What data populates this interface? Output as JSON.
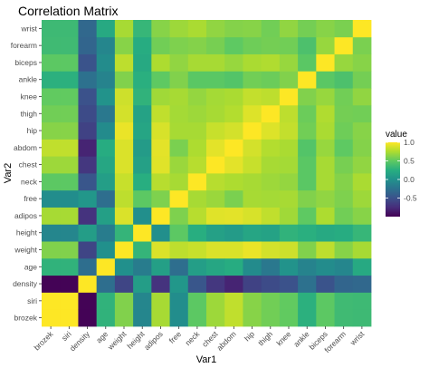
{
  "chart_data": {
    "type": "heatmap",
    "title": "Correlation Matrix",
    "xlabel": "Var1",
    "ylabel": "Var2",
    "variables": [
      "brozek",
      "siri",
      "density",
      "age",
      "weight",
      "height",
      "adipos",
      "free",
      "neck",
      "chest",
      "abdom",
      "hip",
      "thigh",
      "knee",
      "ankle",
      "biceps",
      "forearm",
      "wrist"
    ],
    "values": [
      [
        1.0,
        1.0,
        -0.99,
        0.29,
        0.61,
        -0.09,
        0.73,
        -0.03,
        0.49,
        0.7,
        0.81,
        0.63,
        0.56,
        0.51,
        0.27,
        0.49,
        0.36,
        0.35
      ],
      [
        1.0,
        1.0,
        -0.99,
        0.29,
        0.61,
        -0.09,
        0.73,
        -0.03,
        0.49,
        0.7,
        0.81,
        0.63,
        0.56,
        0.51,
        0.27,
        0.49,
        0.36,
        0.35
      ],
      [
        -0.99,
        -0.99,
        1.0,
        -0.28,
        -0.59,
        0.1,
        -0.71,
        0.05,
        -0.47,
        -0.68,
        -0.8,
        -0.61,
        -0.55,
        -0.5,
        -0.26,
        -0.49,
        -0.35,
        -0.33
      ],
      [
        0.29,
        0.29,
        -0.28,
        1.0,
        -0.01,
        -0.17,
        0.12,
        -0.28,
        0.11,
        0.18,
        0.23,
        -0.05,
        -0.2,
        0.02,
        -0.11,
        -0.04,
        -0.09,
        0.21
      ],
      [
        0.61,
        0.61,
        -0.59,
        -0.01,
        1.0,
        0.31,
        0.89,
        0.8,
        0.83,
        0.89,
        0.89,
        0.94,
        0.87,
        0.85,
        0.61,
        0.8,
        0.63,
        0.73
      ],
      [
        -0.09,
        -0.09,
        0.1,
        -0.17,
        0.31,
        1.0,
        -0.02,
        0.49,
        0.25,
        0.13,
        0.09,
        0.17,
        0.15,
        0.29,
        0.26,
        0.21,
        0.23,
        0.32
      ],
      [
        0.73,
        0.73,
        -0.71,
        0.12,
        0.89,
        -0.02,
        1.0,
        0.6,
        0.78,
        0.91,
        0.92,
        0.88,
        0.81,
        0.71,
        0.5,
        0.75,
        0.56,
        0.63
      ],
      [
        -0.03,
        -0.03,
        0.05,
        -0.28,
        0.8,
        0.49,
        0.6,
        1.0,
        0.73,
        0.69,
        0.59,
        0.73,
        0.72,
        0.73,
        0.61,
        0.66,
        0.6,
        0.7
      ],
      [
        0.49,
        0.49,
        -0.47,
        0.11,
        0.83,
        0.25,
        0.78,
        0.73,
        1.0,
        0.78,
        0.75,
        0.73,
        0.7,
        0.67,
        0.48,
        0.73,
        0.62,
        0.74
      ],
      [
        0.7,
        0.7,
        -0.68,
        0.18,
        0.89,
        0.13,
        0.91,
        0.69,
        0.78,
        1.0,
        0.92,
        0.83,
        0.73,
        0.72,
        0.48,
        0.73,
        0.58,
        0.66
      ],
      [
        0.81,
        0.81,
        -0.8,
        0.23,
        0.89,
        0.09,
        0.92,
        0.59,
        0.75,
        0.92,
        1.0,
        0.87,
        0.77,
        0.74,
        0.45,
        0.68,
        0.5,
        0.62
      ],
      [
        0.63,
        0.63,
        -0.61,
        -0.05,
        0.94,
        0.17,
        0.88,
        0.73,
        0.73,
        0.83,
        0.87,
        1.0,
        0.9,
        0.82,
        0.56,
        0.74,
        0.55,
        0.63
      ],
      [
        0.56,
        0.56,
        -0.55,
        -0.2,
        0.87,
        0.15,
        0.81,
        0.72,
        0.7,
        0.73,
        0.77,
        0.9,
        1.0,
        0.8,
        0.54,
        0.76,
        0.57,
        0.56
      ],
      [
        0.51,
        0.51,
        -0.5,
        0.02,
        0.85,
        0.29,
        0.71,
        0.73,
        0.67,
        0.72,
        0.74,
        0.82,
        0.8,
        1.0,
        0.61,
        0.68,
        0.56,
        0.66
      ],
      [
        0.27,
        0.27,
        -0.26,
        -0.11,
        0.61,
        0.26,
        0.5,
        0.61,
        0.48,
        0.48,
        0.45,
        0.56,
        0.54,
        0.61,
        1.0,
        0.48,
        0.42,
        0.57
      ],
      [
        0.49,
        0.49,
        -0.49,
        -0.04,
        0.8,
        0.21,
        0.75,
        0.66,
        0.73,
        0.73,
        0.68,
        0.74,
        0.76,
        0.68,
        0.48,
        1.0,
        0.68,
        0.63
      ],
      [
        0.36,
        0.36,
        -0.35,
        -0.09,
        0.63,
        0.23,
        0.56,
        0.6,
        0.62,
        0.58,
        0.5,
        0.55,
        0.57,
        0.56,
        0.42,
        0.68,
        1.0,
        0.59
      ],
      [
        0.35,
        0.35,
        -0.33,
        0.21,
        0.73,
        0.32,
        0.63,
        0.7,
        0.74,
        0.66,
        0.62,
        0.63,
        0.56,
        0.66,
        0.57,
        0.63,
        0.59,
        1.0
      ]
    ],
    "color_scale": {
      "name": "viridis",
      "limits": [
        -1.0,
        1.0
      ],
      "colors": [
        "#440154",
        "#472d7b",
        "#3b528b",
        "#2c728e",
        "#21918c",
        "#28ae80",
        "#5ec962",
        "#addc30",
        "#fde725"
      ]
    },
    "legend": {
      "title": "value",
      "position": "right",
      "ticks": [
        1.0,
        0.5,
        0.0,
        -0.5
      ],
      "tick_labels": [
        "1.0",
        "0.5",
        "0.0",
        "-0.5"
      ]
    },
    "panel_background": "#ebebeb",
    "grid": false
  }
}
